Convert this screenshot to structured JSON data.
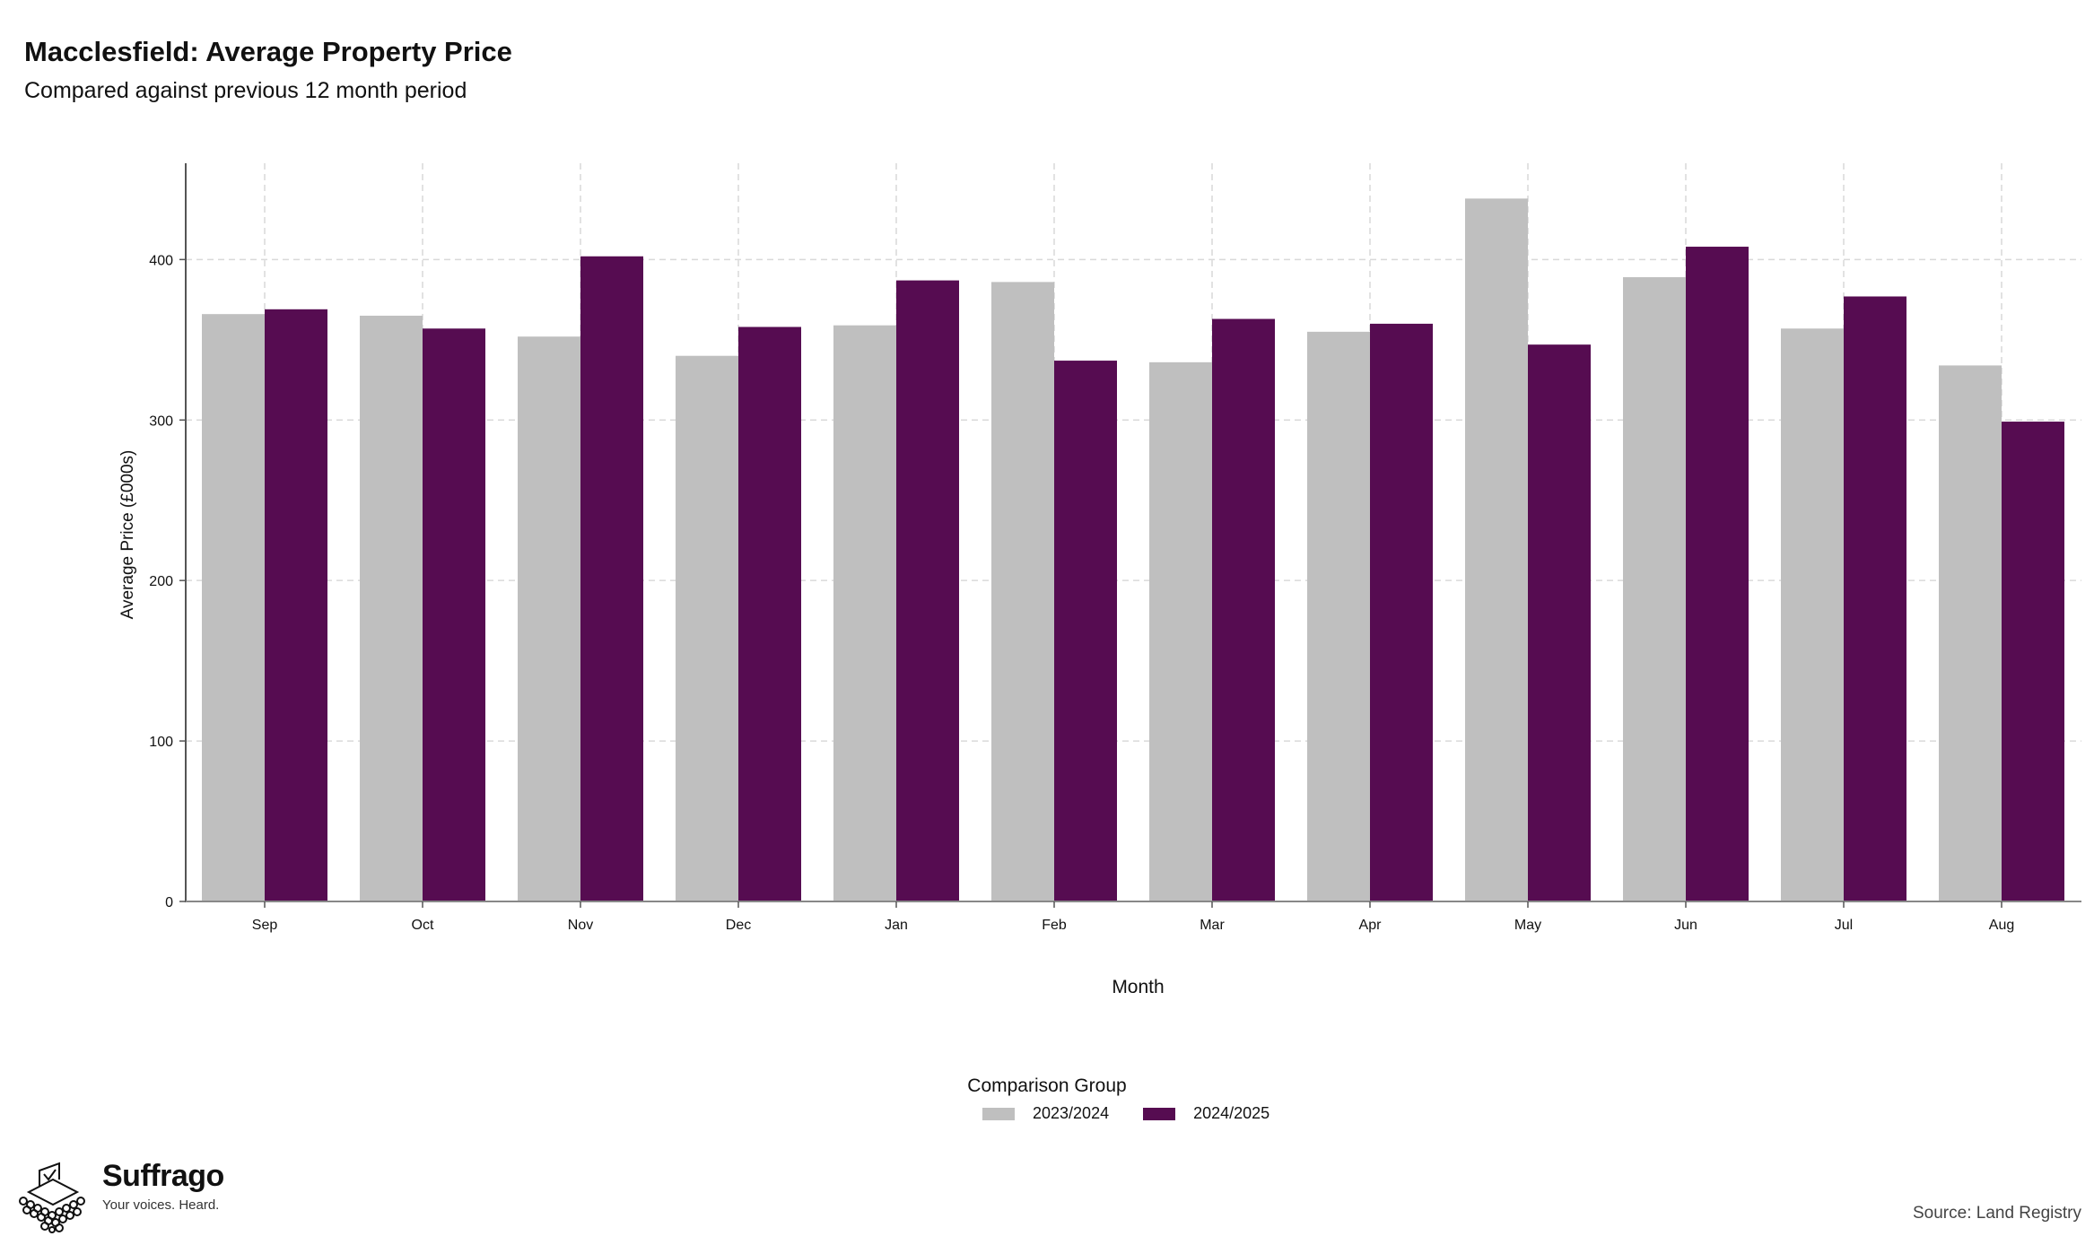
{
  "header": {
    "title": "Macclesfield: Average Property Price",
    "subtitle": "Compared against previous 12 month period"
  },
  "legend": {
    "title": "Comparison Group",
    "items": [
      {
        "label": "2023/2024",
        "color": "#bfbfbf"
      },
      {
        "label": "2024/2025",
        "color": "#560c51"
      }
    ]
  },
  "footer": {
    "brand": "Suffrago",
    "tagline": "Your voices. Heard.",
    "logo_icon": "ballot-box-crowd-icon",
    "source": "Source: Land Registry"
  },
  "chart_data": {
    "type": "bar",
    "title": "Macclesfield: Average Property Price",
    "subtitle": "Compared against previous 12 month period",
    "xlabel": "Month",
    "ylabel": "Average Price (£000s)",
    "ylim": [
      0,
      460
    ],
    "yticks": [
      0,
      100,
      200,
      300,
      400
    ],
    "grid": true,
    "legend_position": "bottom",
    "categories": [
      "Sep",
      "Oct",
      "Nov",
      "Dec",
      "Jan",
      "Feb",
      "Mar",
      "Apr",
      "May",
      "Jun",
      "Jul",
      "Aug"
    ],
    "series": [
      {
        "name": "2023/2024",
        "color": "#bfbfbf",
        "values": [
          366,
          365,
          352,
          340,
          359,
          386,
          336,
          355,
          438,
          389,
          357,
          334
        ]
      },
      {
        "name": "2024/2025",
        "color": "#560c51",
        "values": [
          369,
          357,
          402,
          358,
          387,
          337,
          363,
          360,
          347,
          408,
          377,
          299
        ]
      }
    ]
  }
}
